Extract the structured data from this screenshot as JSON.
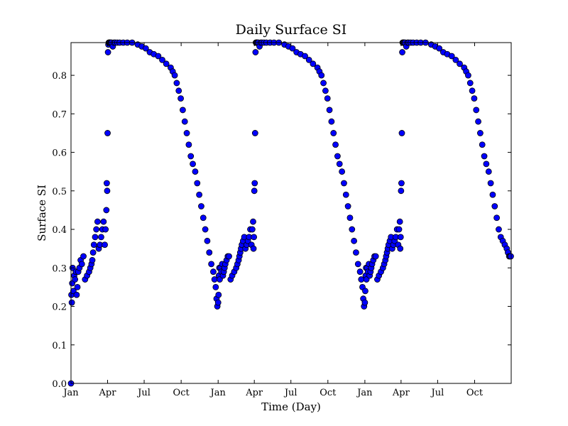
{
  "chart_data": {
    "type": "scatter",
    "title": "Daily Surface SI",
    "xlabel": "Time (Day)",
    "ylabel": "Surface SI",
    "ylim": [
      0.0,
      0.885
    ],
    "xlim": [
      "2000-01-01",
      "2002-12-31"
    ],
    "grid": false,
    "marker_color": "#0000ff",
    "marker_edge_color": "#000000",
    "x_tick_labels": [
      "Jan",
      "Apr",
      "Jul",
      "Oct",
      "Jan",
      "Apr",
      "Jul",
      "Oct",
      "Jan",
      "Apr",
      "Jul",
      "Oct"
    ],
    "x_tick_dates": [
      "2000-01-01",
      "2000-04-01",
      "2000-07-01",
      "2000-10-01",
      "2001-01-01",
      "2001-04-01",
      "2001-07-01",
      "2001-10-01",
      "2002-01-01",
      "2002-04-01",
      "2002-07-01",
      "2002-10-01"
    ],
    "y_ticks": [
      0.0,
      0.1,
      0.2,
      0.3,
      0.4,
      0.5,
      0.6,
      0.7,
      0.8
    ],
    "y_tick_labels": [
      "0.0",
      "0.1",
      "0.2",
      "0.3",
      "0.4",
      "0.5",
      "0.6",
      "0.7",
      "0.8"
    ],
    "series": [
      {
        "x": [
          "2000-01-01",
          "2000-01-02",
          "2000-01-03",
          "2000-01-04",
          "2000-01-05",
          "2000-01-07",
          "2000-01-09",
          "2000-01-11",
          "2000-01-13",
          "2000-01-15",
          "2000-01-17",
          "2000-01-19",
          "2000-01-22",
          "2000-01-25",
          "2000-01-28",
          "2000-02-01",
          "2000-02-05",
          "2000-02-10",
          "2000-02-15",
          "2000-02-18",
          "2000-02-21",
          "2000-02-23",
          "2000-02-25",
          "2000-02-27",
          "2000-03-01",
          "2000-03-04",
          "2000-03-07",
          "2000-03-10",
          "2000-03-13",
          "2000-03-16",
          "2000-03-19",
          "2000-03-22",
          "2000-03-25",
          "2000-03-27",
          "2000-03-29",
          "2000-03-30",
          "2000-03-31",
          "2000-04-01",
          "2000-04-02",
          "2000-04-03",
          "2000-04-04",
          "2000-04-05",
          "2000-04-06",
          "2000-04-07",
          "2000-04-09",
          "2000-04-11",
          "2000-04-14",
          "2000-04-17",
          "2000-04-20",
          "2000-04-25",
          "2000-05-01",
          "2000-05-10",
          "2000-05-20",
          "2000-06-01",
          "2000-06-15",
          "2000-06-25",
          "2000-07-05",
          "2000-07-15",
          "2000-07-25",
          "2000-08-05",
          "2000-08-15",
          "2000-08-25",
          "2000-09-05",
          "2000-09-10",
          "2000-09-15",
          "2000-09-20",
          "2000-09-25",
          "2000-09-30",
          "2000-10-05",
          "2000-10-10",
          "2000-10-15",
          "2000-10-20",
          "2000-10-25",
          "2000-10-30",
          "2000-11-05",
          "2000-11-10",
          "2000-11-15",
          "2000-11-20",
          "2000-11-25",
          "2000-11-30",
          "2000-12-05",
          "2000-12-10",
          "2000-12-15",
          "2000-12-20",
          "2000-12-23",
          "2000-12-26",
          "2000-12-28",
          "2000-12-30",
          "2001-01-01",
          "2001-01-02",
          "2001-01-03",
          "2001-01-04",
          "2001-01-05",
          "2001-01-07",
          "2001-01-09",
          "2001-01-11",
          "2001-01-13",
          "2001-01-15",
          "2001-01-17",
          "2001-01-19",
          "2001-01-22",
          "2001-01-25",
          "2001-01-28",
          "2001-02-01",
          "2001-02-05",
          "2001-02-10",
          "2001-02-15",
          "2001-02-18",
          "2001-02-21",
          "2001-02-23",
          "2001-02-25",
          "2001-02-27",
          "2001-03-01",
          "2001-03-04",
          "2001-03-07",
          "2001-03-10",
          "2001-03-13",
          "2001-03-16",
          "2001-03-19",
          "2001-03-22",
          "2001-03-25",
          "2001-03-27",
          "2001-03-29",
          "2001-03-30",
          "2001-03-31",
          "2001-04-01",
          "2001-04-02",
          "2001-04-03",
          "2001-04-04",
          "2001-04-05",
          "2001-04-06",
          "2001-04-07",
          "2001-04-09",
          "2001-04-11",
          "2001-04-14",
          "2001-04-17",
          "2001-04-20",
          "2001-04-25",
          "2001-05-01",
          "2001-05-10",
          "2001-05-20",
          "2001-06-01",
          "2001-06-15",
          "2001-06-25",
          "2001-07-05",
          "2001-07-15",
          "2001-07-25",
          "2001-08-05",
          "2001-08-15",
          "2001-08-25",
          "2001-09-05",
          "2001-09-10",
          "2001-09-15",
          "2001-09-20",
          "2001-09-25",
          "2001-09-30",
          "2001-10-05",
          "2001-10-10",
          "2001-10-15",
          "2001-10-20",
          "2001-10-25",
          "2001-10-30",
          "2001-11-05",
          "2001-11-10",
          "2001-11-15",
          "2001-11-20",
          "2001-11-25",
          "2001-11-30",
          "2001-12-05",
          "2001-12-10",
          "2001-12-15",
          "2001-12-20",
          "2001-12-23",
          "2001-12-26",
          "2001-12-28",
          "2001-12-30",
          "2002-01-01",
          "2002-01-02",
          "2002-01-03",
          "2002-01-04",
          "2002-01-05",
          "2002-01-07",
          "2002-01-09",
          "2002-01-11",
          "2002-01-13",
          "2002-01-15",
          "2002-01-17",
          "2002-01-19",
          "2002-01-22",
          "2002-01-25",
          "2002-01-28",
          "2002-02-01",
          "2002-02-05",
          "2002-02-10",
          "2002-02-15",
          "2002-02-18",
          "2002-02-21",
          "2002-02-23",
          "2002-02-25",
          "2002-02-27",
          "2002-03-01",
          "2002-03-04",
          "2002-03-07",
          "2002-03-10",
          "2002-03-13",
          "2002-03-16",
          "2002-03-19",
          "2002-03-22",
          "2002-03-25",
          "2002-03-27",
          "2002-03-29",
          "2002-03-30",
          "2002-03-31",
          "2002-04-01",
          "2002-04-02",
          "2002-04-03",
          "2002-04-04",
          "2002-04-05",
          "2002-04-06",
          "2002-04-07",
          "2002-04-09",
          "2002-04-11",
          "2002-04-14",
          "2002-04-17",
          "2002-04-20",
          "2002-04-25",
          "2002-05-01",
          "2002-05-10",
          "2002-05-20",
          "2002-06-01",
          "2002-06-15",
          "2002-06-25",
          "2002-07-05",
          "2002-07-15",
          "2002-07-25",
          "2002-08-05",
          "2002-08-15",
          "2002-08-25",
          "2002-09-05",
          "2002-09-10",
          "2002-09-15",
          "2002-09-20",
          "2002-09-25",
          "2002-09-30",
          "2002-10-05",
          "2002-10-10",
          "2002-10-15",
          "2002-10-20",
          "2002-10-25",
          "2002-10-30",
          "2002-11-05",
          "2002-11-10",
          "2002-11-15",
          "2002-11-20",
          "2002-11-25",
          "2002-11-30",
          "2002-12-05",
          "2002-12-10",
          "2002-12-15",
          "2002-12-20",
          "2002-12-23",
          "2002-12-26",
          "2002-12-28",
          "2002-12-30"
        ],
        "y": [
          0.0,
          0.23,
          0.21,
          0.26,
          0.3,
          0.24,
          0.28,
          0.27,
          0.29,
          0.23,
          0.25,
          0.29,
          0.3,
          0.32,
          0.31,
          0.33,
          0.27,
          0.28,
          0.29,
          0.3,
          0.31,
          0.32,
          0.34,
          0.36,
          0.38,
          0.4,
          0.42,
          0.35,
          0.36,
          0.38,
          0.4,
          0.42,
          0.36,
          0.4,
          0.45,
          0.52,
          0.5,
          0.65,
          0.86,
          0.88,
          0.885,
          0.885,
          0.885,
          0.885,
          0.885,
          0.885,
          0.875,
          0.885,
          0.885,
          0.885,
          0.885,
          0.885,
          0.885,
          0.885,
          0.88,
          0.875,
          0.87,
          0.86,
          0.855,
          0.85,
          0.84,
          0.83,
          0.82,
          0.81,
          0.8,
          0.78,
          0.76,
          0.74,
          0.71,
          0.68,
          0.65,
          0.62,
          0.59,
          0.57,
          0.55,
          0.52,
          0.49,
          0.46,
          0.43,
          0.4,
          0.37,
          0.34,
          0.31,
          0.29,
          0.27,
          0.25,
          0.22,
          0.2,
          0.21,
          0.23,
          0.28,
          0.3,
          0.27,
          0.3,
          0.29,
          0.31,
          0.28,
          0.29,
          0.3,
          0.31,
          0.32,
          0.33,
          0.33,
          0.27,
          0.28,
          0.29,
          0.3,
          0.31,
          0.32,
          0.33,
          0.34,
          0.35,
          0.36,
          0.37,
          0.38,
          0.35,
          0.36,
          0.37,
          0.38,
          0.4,
          0.36,
          0.4,
          0.42,
          0.35,
          0.38,
          0.5,
          0.52,
          0.65,
          0.86,
          0.885,
          0.885,
          0.885,
          0.885,
          0.885,
          0.875,
          0.885,
          0.885,
          0.885,
          0.885,
          0.885,
          0.885,
          0.885,
          0.88,
          0.875,
          0.87,
          0.86,
          0.855,
          0.85,
          0.84,
          0.83,
          0.82,
          0.81,
          0.8,
          0.78,
          0.76,
          0.74,
          0.71,
          0.68,
          0.65,
          0.62,
          0.59,
          0.57,
          0.55,
          0.52,
          0.49,
          0.46,
          0.43,
          0.4,
          0.37,
          0.34,
          0.31,
          0.29,
          0.27,
          0.25,
          0.22,
          0.2,
          0.21,
          0.24,
          0.28,
          0.3,
          0.27,
          0.3,
          0.29,
          0.31,
          0.28,
          0.29,
          0.3,
          0.31,
          0.32,
          0.33,
          0.33,
          0.27,
          0.28,
          0.29,
          0.3,
          0.31,
          0.32,
          0.33,
          0.34,
          0.35,
          0.36,
          0.37,
          0.38,
          0.35,
          0.36,
          0.37,
          0.38,
          0.4,
          0.36,
          0.4,
          0.42,
          0.35,
          0.38,
          0.5,
          0.52,
          0.65,
          0.86,
          0.885,
          0.885,
          0.885,
          0.885,
          0.885,
          0.875,
          0.885,
          0.885,
          0.885,
          0.885,
          0.885,
          0.885,
          0.885,
          0.88,
          0.875,
          0.87,
          0.86,
          0.855,
          0.85,
          0.84,
          0.83,
          0.82,
          0.81,
          0.8,
          0.78,
          0.76,
          0.74,
          0.71,
          0.68,
          0.65,
          0.62,
          0.59,
          0.57,
          0.55,
          0.52,
          0.49,
          0.46,
          0.43,
          0.4,
          0.38,
          0.37,
          0.36,
          0.35,
          0.34,
          0.33,
          0.33,
          0.33
        ]
      }
    ]
  }
}
